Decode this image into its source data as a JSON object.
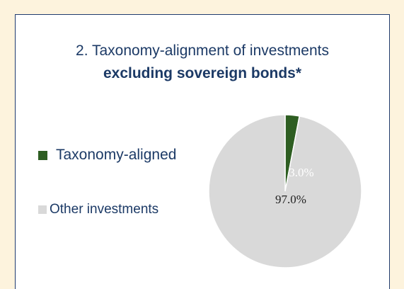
{
  "title_line1": "2. Taxonomy-alignment of investments",
  "title_line2": "excluding sovereign bonds*",
  "colors": {
    "background": "#fdf3dd",
    "border": "#1f3b6e",
    "text": "#1c3a66"
  },
  "chart_data": {
    "type": "pie",
    "title": "",
    "slices": [
      {
        "label": "Taxonomy-aligned",
        "value": 3.0,
        "value_label": "3.0%",
        "color": "#2e5e22",
        "label_color": "#ffffff"
      },
      {
        "label": "Other investments",
        "value": 97.0,
        "value_label": "97.0%",
        "color": "#d9d9d9",
        "label_color": "#222222"
      }
    ],
    "legend": [
      {
        "label": "Taxonomy-aligned",
        "color": "#2e5e22"
      },
      {
        "label": "Other investments",
        "color": "#d9d9d9"
      }
    ],
    "legend_position": "left"
  }
}
